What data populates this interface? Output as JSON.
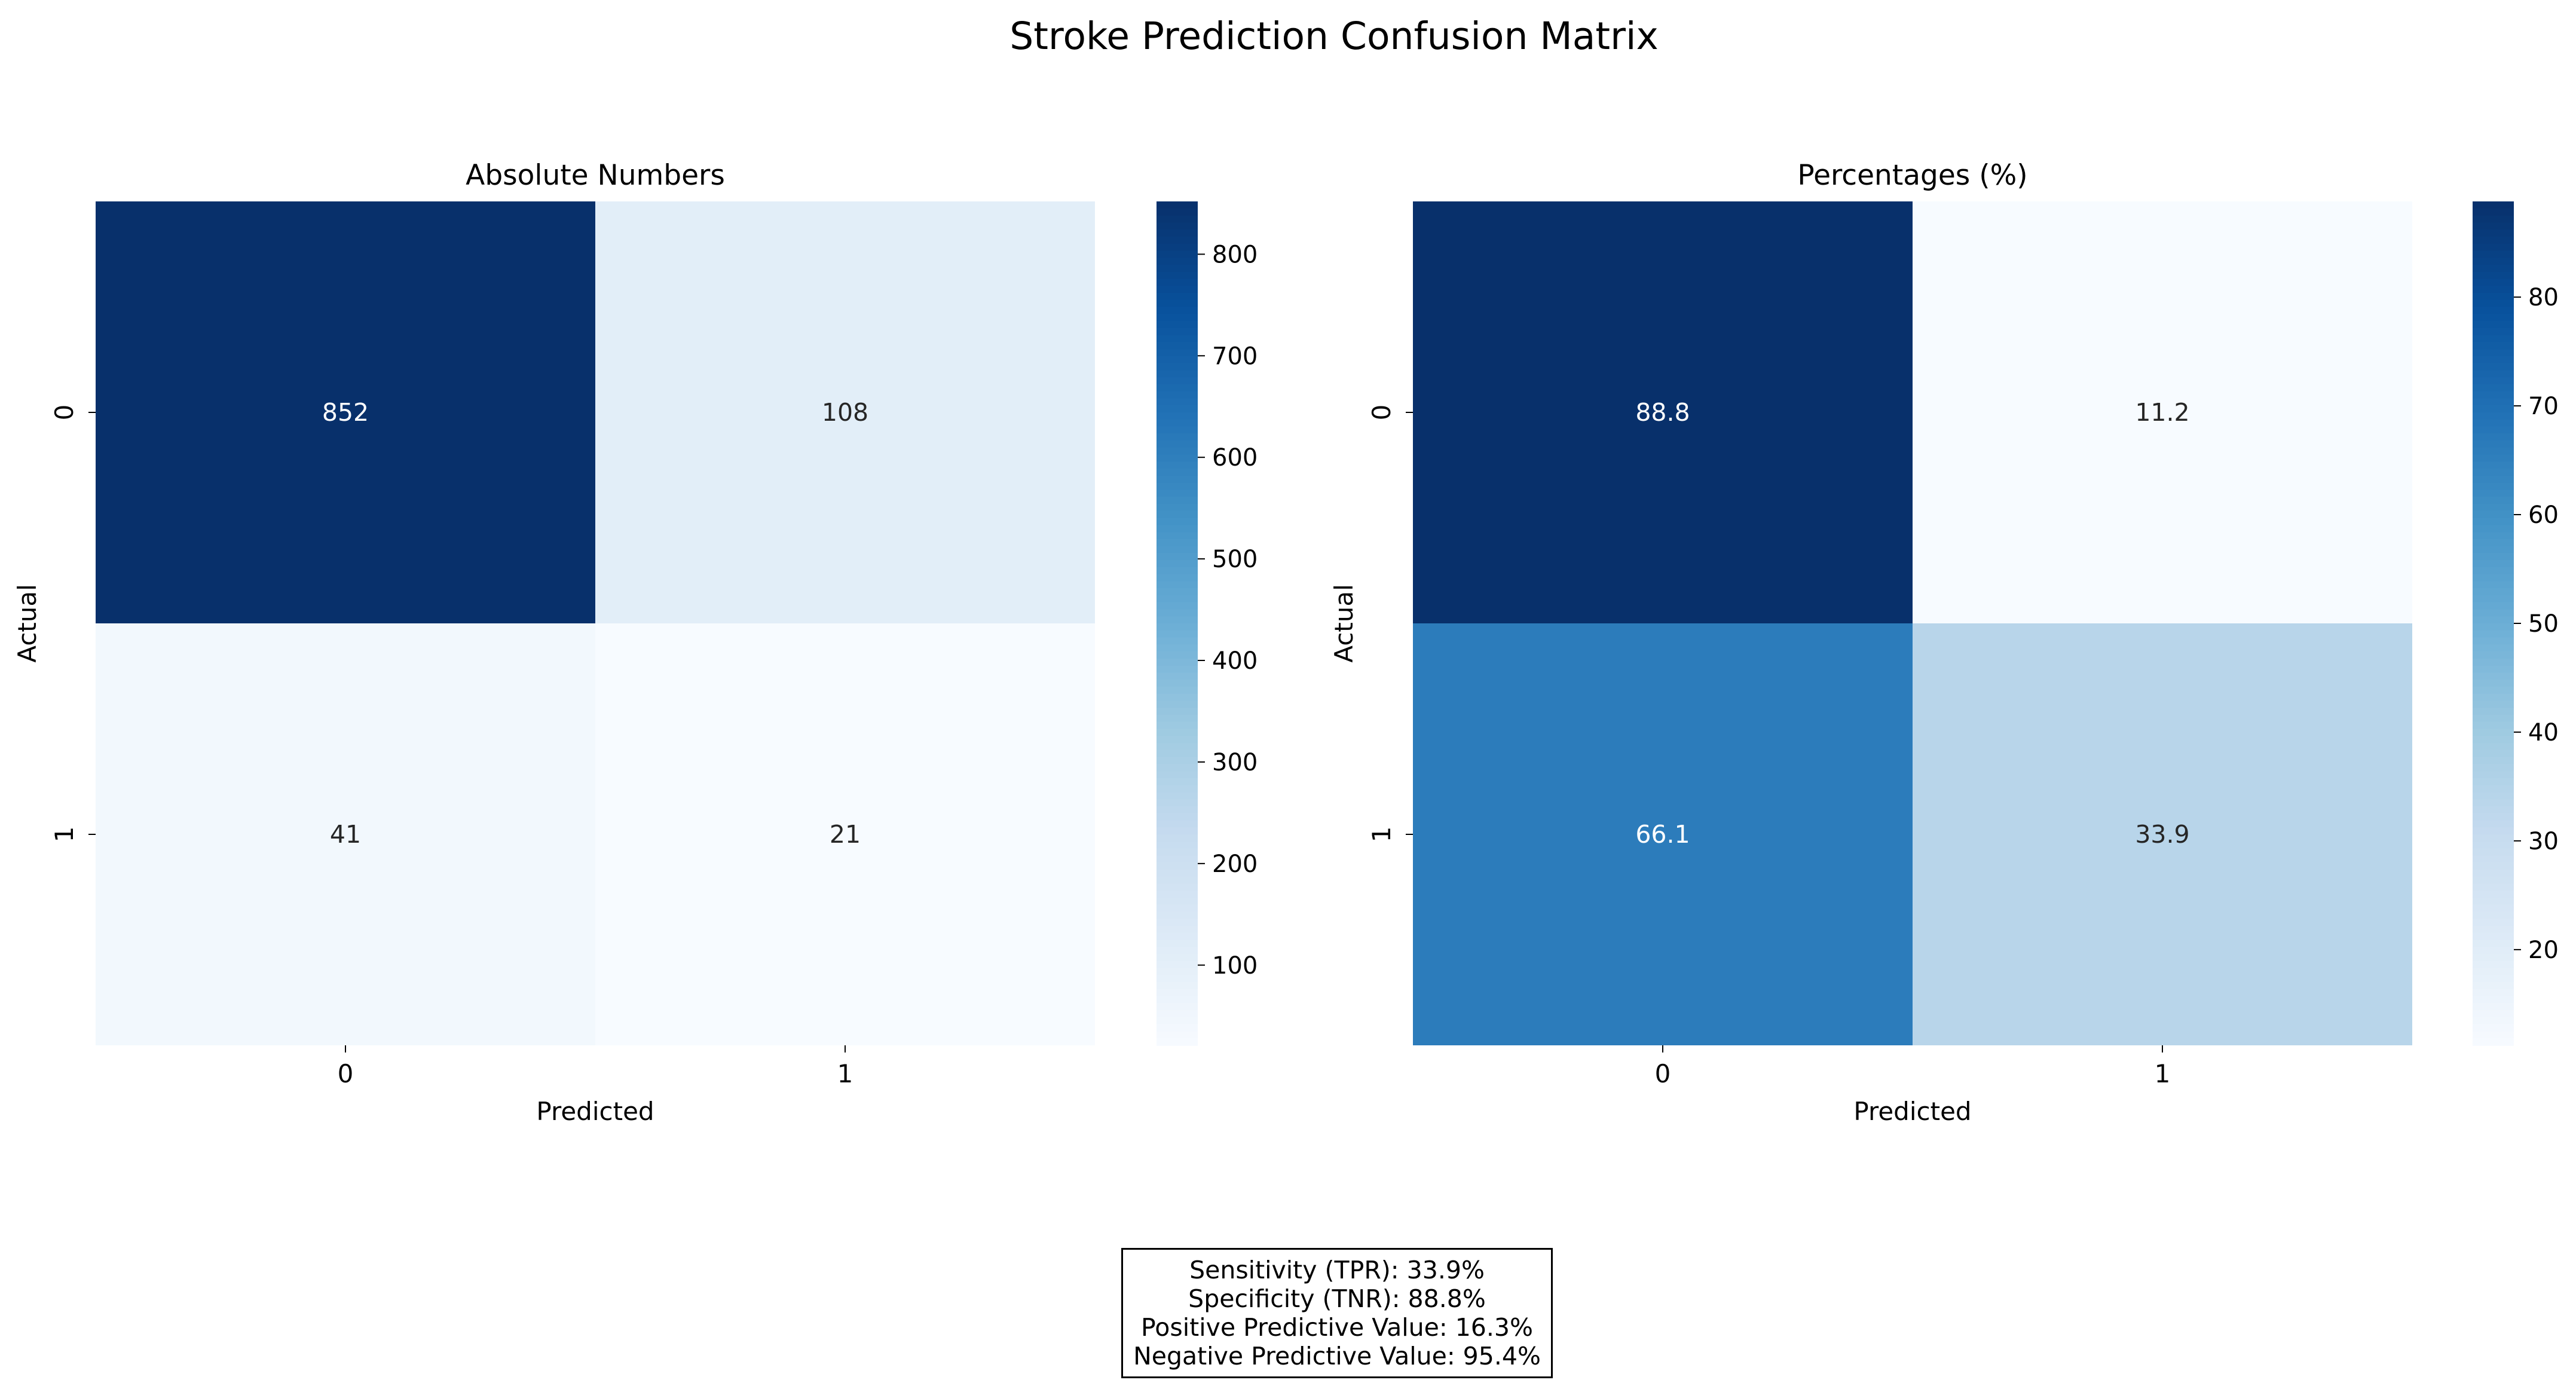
{
  "figure": {
    "title": "Stroke Prediction Confusion Matrix"
  },
  "chart_data": [
    {
      "type": "heatmap",
      "title": "Absolute Numbers",
      "xlabel": "Predicted",
      "ylabel": "Actual",
      "x_categories": [
        "0",
        "1"
      ],
      "y_categories": [
        "0",
        "1"
      ],
      "values": [
        [
          852,
          108
        ],
        [
          41,
          21
        ]
      ],
      "labels": [
        [
          "852",
          "108"
        ],
        [
          "41",
          "21"
        ]
      ],
      "colormap": "Blues",
      "vmin": 21,
      "vmax": 852,
      "colorbar_ticks": [
        100,
        200,
        300,
        400,
        500,
        600,
        700,
        800
      ]
    },
    {
      "type": "heatmap",
      "title": "Percentages (%)",
      "xlabel": "Predicted",
      "ylabel": "Actual",
      "x_categories": [
        "0",
        "1"
      ],
      "y_categories": [
        "0",
        "1"
      ],
      "values": [
        [
          88.8,
          11.2
        ],
        [
          66.1,
          33.9
        ]
      ],
      "labels": [
        [
          "88.8",
          "11.2"
        ],
        [
          "66.1",
          "33.9"
        ]
      ],
      "colormap": "Blues",
      "vmin": 11.2,
      "vmax": 88.8,
      "colorbar_ticks": [
        20,
        30,
        40,
        50,
        60,
        70,
        80
      ]
    }
  ],
  "stats": {
    "lines": [
      "Sensitivity (TPR): 33.9%",
      "Specificity (TNR): 88.8%",
      "Positive Predictive Value: 16.3%",
      "Negative Predictive Value: 95.4%"
    ]
  }
}
